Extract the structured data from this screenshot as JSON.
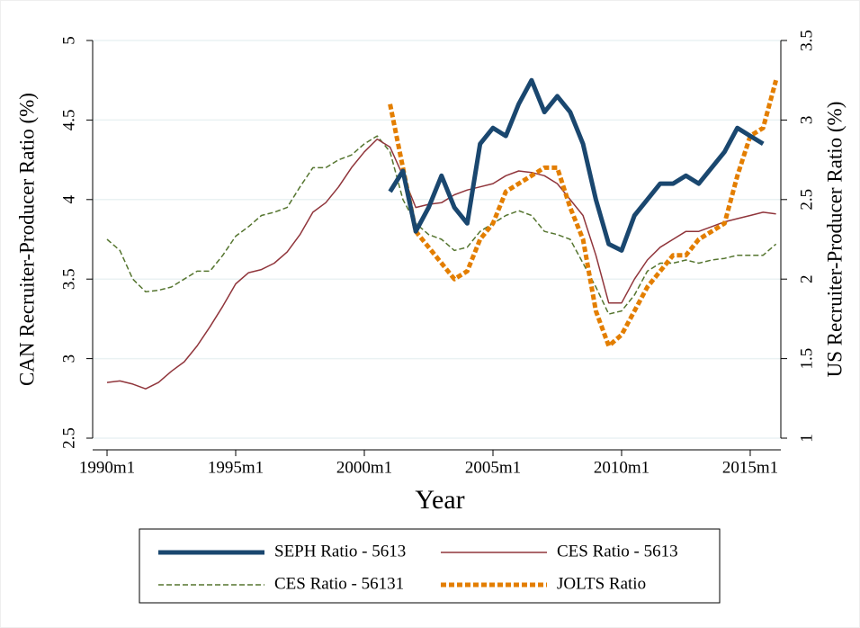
{
  "chart_data": {
    "type": "line",
    "xlabel": "Year",
    "ylabel": "CAN Recruiter-Producer Ratio (%)",
    "y2label": "US Recruiter-Producer Ratio (%)",
    "x": [
      1990,
      1990.5,
      1991,
      1991.5,
      1992,
      1992.5,
      1993,
      1993.5,
      1994,
      1994.5,
      1995,
      1995.5,
      1996,
      1996.5,
      1997,
      1997.5,
      1998,
      1998.5,
      1999,
      1999.5,
      2000,
      2000.5,
      2001,
      2001.5,
      2002,
      2002.5,
      2003,
      2003.5,
      2004,
      2004.5,
      2005,
      2005.5,
      2006,
      2006.5,
      2007,
      2007.5,
      2008,
      2008.5,
      2009,
      2009.5,
      2010,
      2010.5,
      2011,
      2011.5,
      2012,
      2012.5,
      2013,
      2013.5,
      2014,
      2014.5,
      2015,
      2015.5,
      2016
    ],
    "xlim": [
      1989.44,
      2016.19
    ],
    "xticks": [
      {
        "value": 1990,
        "label": "1990m1"
      },
      {
        "value": 1995,
        "label": "1995m1"
      },
      {
        "value": 2000,
        "label": "2000m1"
      },
      {
        "value": 2005,
        "label": "2005m1"
      },
      {
        "value": 2010,
        "label": "2010m1"
      },
      {
        "value": 2015,
        "label": "2015m1"
      }
    ],
    "ylim": [
      2.5,
      5
    ],
    "yticks": [
      2.5,
      3,
      3.5,
      4,
      4.5,
      5
    ],
    "y2lim": [
      1,
      3.5
    ],
    "y2ticks": [
      1,
      1.5,
      2,
      2.5,
      3,
      3.5
    ],
    "grid": true,
    "series": [
      {
        "name": "SEPH Ratio - 5613",
        "color": "#1a476f",
        "values": [
          null,
          null,
          null,
          null,
          null,
          null,
          null,
          null,
          null,
          null,
          null,
          null,
          null,
          null,
          null,
          null,
          null,
          null,
          null,
          null,
          null,
          null,
          4.05,
          4.18,
          3.8,
          3.95,
          4.15,
          3.95,
          3.85,
          4.35,
          4.45,
          4.4,
          4.6,
          4.75,
          4.55,
          4.65,
          4.55,
          4.35,
          4.0,
          3.72,
          3.68,
          3.9,
          4.0,
          4.1,
          4.1,
          4.15,
          4.1,
          4.2,
          4.3,
          4.45,
          4.4,
          4.35,
          null
        ]
      },
      {
        "name": "CES Ratio - 5613",
        "color": "#90353b",
        "values": [
          2.85,
          2.86,
          2.84,
          2.81,
          2.85,
          2.92,
          2.98,
          3.08,
          3.2,
          3.33,
          3.47,
          3.54,
          3.56,
          3.6,
          3.67,
          3.78,
          3.92,
          3.98,
          4.08,
          4.2,
          4.3,
          4.38,
          4.33,
          4.15,
          3.95,
          3.97,
          3.98,
          4.03,
          4.06,
          4.08,
          4.1,
          4.15,
          4.18,
          4.17,
          4.15,
          4.1,
          4.0,
          3.9,
          3.65,
          3.35,
          3.35,
          3.5,
          3.62,
          3.7,
          3.75,
          3.8,
          3.8,
          3.83,
          3.86,
          3.88,
          3.9,
          3.92,
          3.91
        ]
      },
      {
        "name": "CES Ratio - 56131",
        "color": "#55752f",
        "values": [
          3.75,
          3.68,
          3.5,
          3.42,
          3.43,
          3.45,
          3.5,
          3.55,
          3.55,
          3.65,
          3.77,
          3.83,
          3.9,
          3.92,
          3.95,
          4.08,
          4.2,
          4.2,
          4.25,
          4.28,
          4.35,
          4.4,
          4.3,
          4.0,
          3.85,
          3.78,
          3.75,
          3.68,
          3.7,
          3.8,
          3.85,
          3.9,
          3.93,
          3.9,
          3.8,
          3.78,
          3.75,
          3.6,
          3.45,
          3.28,
          3.3,
          3.4,
          3.55,
          3.6,
          3.6,
          3.62,
          3.6,
          3.62,
          3.63,
          3.65,
          3.65,
          3.65,
          3.72
        ]
      },
      {
        "name": "JOLTS Ratio",
        "color": "#e37e00",
        "axis": "y2",
        "values": [
          null,
          null,
          null,
          null,
          null,
          null,
          null,
          null,
          null,
          null,
          null,
          null,
          null,
          null,
          null,
          null,
          null,
          null,
          null,
          null,
          null,
          null,
          3.1,
          2.7,
          2.3,
          2.2,
          2.1,
          2.0,
          2.05,
          2.25,
          2.35,
          2.55,
          2.6,
          2.65,
          2.7,
          2.7,
          2.45,
          2.25,
          1.8,
          1.58,
          1.65,
          1.8,
          1.95,
          2.05,
          2.15,
          2.15,
          2.25,
          2.3,
          2.35,
          2.65,
          2.9,
          2.95,
          3.25
        ]
      }
    ]
  }
}
